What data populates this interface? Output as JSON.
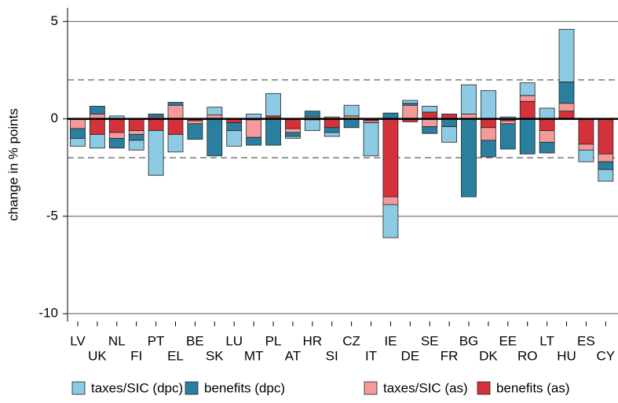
{
  "chart_data": {
    "type": "bar",
    "stacked": true,
    "y_label": "change in % points",
    "categories": [
      "LV",
      "UK",
      "NL",
      "FI",
      "PT",
      "EL",
      "BE",
      "SK",
      "LU",
      "MT",
      "PL",
      "AT",
      "HR",
      "SI",
      "CZ",
      "IT",
      "IE",
      "DE",
      "SE",
      "FR",
      "BG",
      "DK",
      "EE",
      "RO",
      "LT",
      "HU",
      "ES",
      "CY"
    ],
    "series": [
      {
        "name": "taxes/SIC (dpc)",
        "color": "#8dcae3",
        "values": [
          -0.4,
          -0.7,
          0.15,
          -0.5,
          -2.3,
          -0.9,
          0,
          0.4,
          -0.8,
          0.25,
          1.15,
          -0.1,
          -0.55,
          -0.2,
          0.55,
          -1.7,
          -1.7,
          0.15,
          0.3,
          -0.8,
          1.5,
          1.45,
          0.1,
          0.65,
          0.55,
          2.7,
          -0.6,
          -0.6
        ]
      },
      {
        "name": "benefits (dpc)",
        "color": "#2b7f9e",
        "values": [
          -0.5,
          0.4,
          -0.5,
          -0.3,
          0.15,
          0.15,
          -0.8,
          -1.9,
          -0.4,
          -0.4,
          -1.35,
          -0.2,
          0.3,
          -0.25,
          -0.45,
          0,
          0.3,
          0.1,
          -0.35,
          -0.4,
          -4.0,
          -0.85,
          -1.3,
          -1.8,
          -0.55,
          1.1,
          0,
          -0.4
        ]
      },
      {
        "name": "taxes/SIC (as)",
        "color": "#f59a9a",
        "values": [
          -0.5,
          0.25,
          -0.3,
          -0.2,
          0.1,
          0.7,
          -0.15,
          0.2,
          0,
          -0.9,
          0,
          -0.2,
          0.1,
          0.1,
          0.15,
          -0.1,
          -0.4,
          0.7,
          -0.4,
          0,
          0.25,
          -0.65,
          -0.15,
          0.3,
          -0.6,
          0.4,
          -0.3,
          -0.4
        ]
      },
      {
        "name": "benefits (as)",
        "color": "#d3323b",
        "values": [
          0,
          -0.8,
          -0.7,
          -0.6,
          -0.6,
          -0.8,
          -0.1,
          0,
          -0.2,
          -0.05,
          0.15,
          -0.5,
          -0.05,
          -0.45,
          0,
          -0.1,
          -4.0,
          -0.15,
          0.35,
          0.25,
          0,
          -0.45,
          -0.1,
          0.9,
          -0.6,
          0.4,
          -1.3,
          -1.8
        ]
      }
    ],
    "ylim": [
      -10.4,
      5.7
    ],
    "yticks": [
      -10,
      -5,
      0,
      5
    ],
    "reference_lines": [
      -2,
      2
    ],
    "grid": true
  }
}
